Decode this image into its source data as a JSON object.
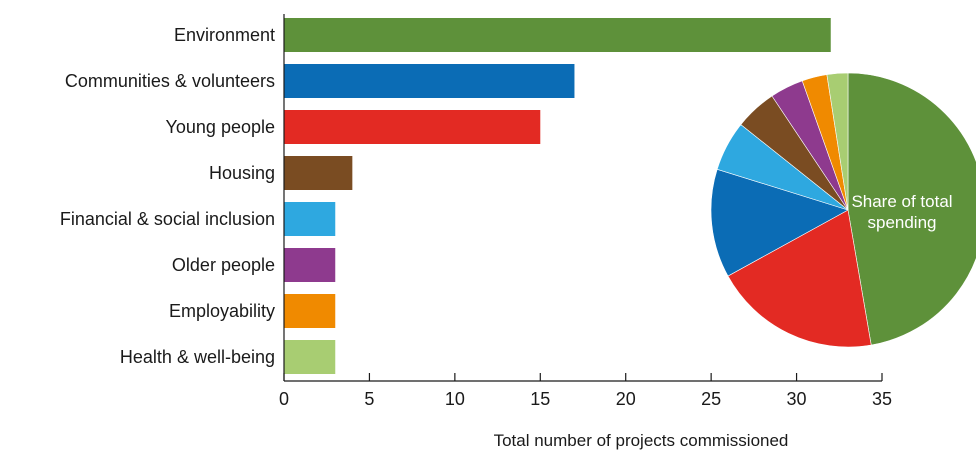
{
  "chart_data": [
    {
      "type": "bar",
      "orientation": "horizontal",
      "categories": [
        "Environment",
        "Communities & volunteers",
        "Young people",
        "Housing",
        "Financial & social inclusion",
        "Older people",
        "Employability",
        "Health & well-being"
      ],
      "values": [
        32,
        17,
        15,
        4,
        3,
        3,
        3,
        3
      ],
      "colors": [
        "#5e913a",
        "#0b6cb5",
        "#e32a23",
        "#7a4c22",
        "#2ea8e0",
        "#8e3a8e",
        "#f08a00",
        "#a8cd72"
      ],
      "xlabel": "Total number of projects commissioned",
      "xlim": [
        0,
        35
      ],
      "xticks": [
        0,
        5,
        10,
        15,
        20,
        25,
        30,
        35
      ],
      "grid": false
    },
    {
      "type": "pie",
      "label": "Share of total spending",
      "label_lines": [
        "Share of total",
        "spending"
      ],
      "slices": [
        {
          "category": "Environment",
          "value": 48
        },
        {
          "category": "Young people",
          "value": 20
        },
        {
          "category": "Communities & volunteers",
          "value": 13
        },
        {
          "category": "Financial & social inclusion",
          "value": 6
        },
        {
          "category": "Housing",
          "value": 5
        },
        {
          "category": "Older people",
          "value": 4
        },
        {
          "category": "Employability",
          "value": 3
        },
        {
          "category": "Health & well-being",
          "value": 2.5
        }
      ],
      "colors": [
        "#5e913a",
        "#e32a23",
        "#0b6cb5",
        "#2ea8e0",
        "#7a4c22",
        "#8e3a8e",
        "#f08a00",
        "#a8cd72"
      ]
    }
  ]
}
